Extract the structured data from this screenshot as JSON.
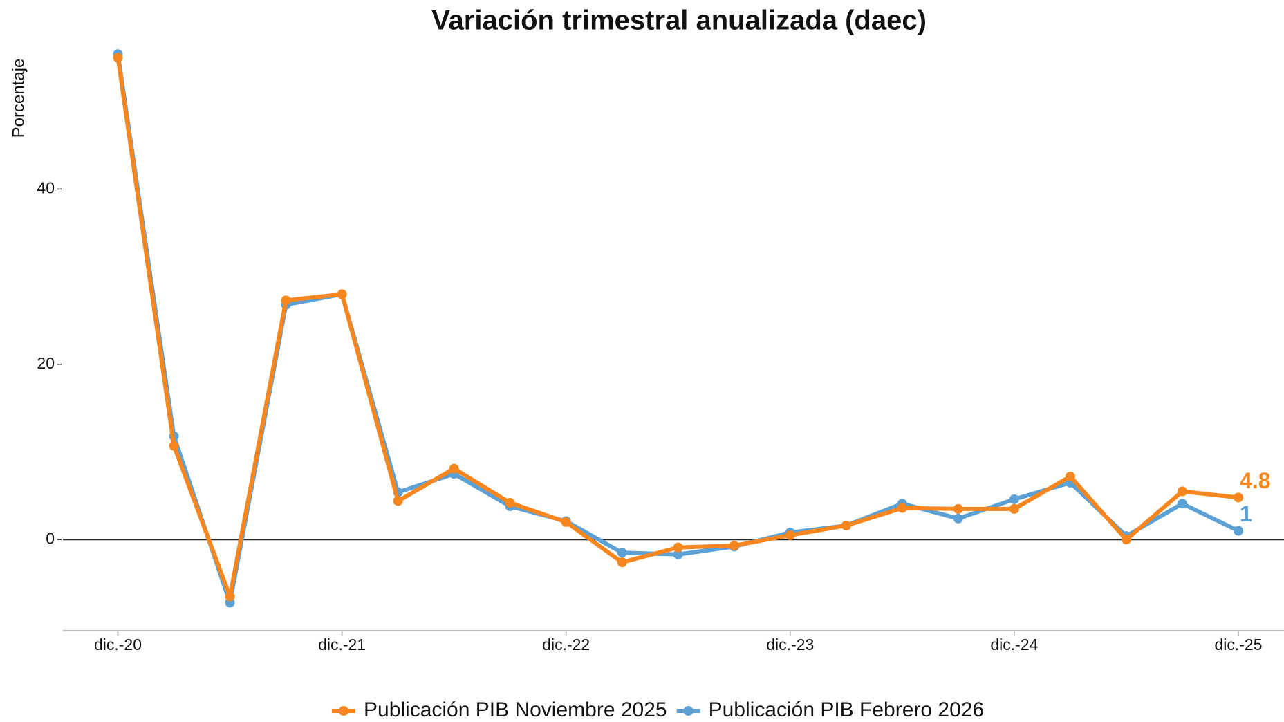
{
  "chart_data": {
    "type": "line",
    "title": "Variación trimestral anualizada (daec)",
    "y_label": "Porcentaje",
    "categories": [
      "dic.-20",
      null,
      null,
      null,
      "dic.-21",
      null,
      null,
      null,
      "dic.-22",
      null,
      null,
      null,
      "dic.-23",
      null,
      null,
      null,
      "dic.-24",
      null,
      null,
      null,
      "dic.-25"
    ],
    "series": [
      {
        "name": "Publicación PIB Noviembre 2025",
        "color": "#f7861f",
        "values": [
          55.0,
          10.7,
          -6.5,
          27.3,
          28.0,
          4.4,
          8.1,
          4.2,
          2.0,
          -2.6,
          -0.9,
          -0.7,
          0.5,
          1.6,
          3.6,
          3.5,
          3.5,
          7.2,
          0.0,
          5.5,
          4.8
        ]
      },
      {
        "name": "Publicación PIB Febrero 2026",
        "color": "#5ba1d6",
        "values": [
          55.4,
          11.8,
          -7.2,
          26.8,
          28.0,
          5.4,
          7.5,
          3.8,
          2.1,
          -1.5,
          -1.7,
          -0.8,
          0.8,
          1.6,
          4.1,
          2.4,
          4.6,
          6.5,
          0.4,
          4.1,
          1
        ]
      }
    ],
    "ylim": [
      -10.4,
      57
    ],
    "yticks": [
      0,
      20,
      40
    ],
    "grid": false,
    "legend": "bottom"
  }
}
